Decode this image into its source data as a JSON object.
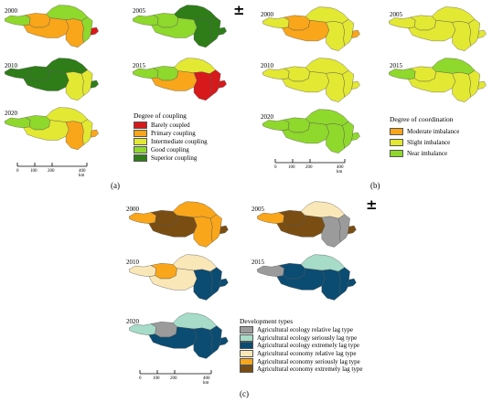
{
  "panel_a": {
    "label": "(a)",
    "years": [
      "2000",
      "2005",
      "2010",
      "2015",
      "2020"
    ],
    "legend_title": "Degree of coupling",
    "legend": [
      {
        "label": "Barely coupled",
        "color": "#d7191c"
      },
      {
        "label": "Primary coupling",
        "color": "#f9a61a"
      },
      {
        "label": "Intermediate coupling",
        "color": "#e3e832"
      },
      {
        "label": "Good coupling",
        "color": "#8fd82c"
      },
      {
        "label": "Superior coupling",
        "color": "#2e7d18"
      }
    ],
    "scale_labels": [
      "0",
      "100",
      "200",
      "400 km"
    ]
  },
  "panel_b": {
    "label": "(b)",
    "years": [
      "2000",
      "2005",
      "2010",
      "2015",
      "2020"
    ],
    "legend_title": "Degree of coordination",
    "legend": [
      {
        "label": "Moderate imbalance",
        "color": "#f9a61a"
      },
      {
        "label": "Slight imbalance",
        "color": "#e3e832"
      },
      {
        "label": "Near imbalance",
        "color": "#8fd82c"
      }
    ],
    "scale_labels": [
      "0",
      "100",
      "200",
      "400 km"
    ]
  },
  "panel_c": {
    "label": "(c)",
    "years": [
      "2000",
      "2005",
      "2010",
      "2015",
      "2020"
    ],
    "legend_title": "Development types",
    "legend": [
      {
        "label": "Agricultural ecology relative lag type",
        "color": "#9b9b9b"
      },
      {
        "label": "Agricultural ecology seriously lag type",
        "color": "#a6dcc8"
      },
      {
        "label": "Agricultural ecology extremely lag type",
        "color": "#0b4c72"
      },
      {
        "label": "Agricultural economy relative lag type",
        "color": "#fae7b7"
      },
      {
        "label": "Agricultural economy seriously lag type",
        "color": "#f9a61a"
      },
      {
        "label": "Agricultural economy extremely lag type",
        "color": "#7a4d12"
      }
    ],
    "scale_labels": [
      "0",
      "100",
      "200",
      "400 km"
    ]
  },
  "north_symbol": "±",
  "maps": {
    "a2000": {
      "west": "#8fd82c",
      "wc": "#f9a61a",
      "center": "#f9a61a",
      "north": "#8fd82c",
      "se": "#f9a61a",
      "east": "#8fd82c",
      "tip": "#d7191c"
    },
    "a2005": {
      "west": "#8fd82c",
      "wc": "#8fd82c",
      "center": "#8fd82c",
      "north": "#2e7d18",
      "se": "#2e7d18",
      "east": "#2e7d18",
      "tip": "#2e7d18"
    },
    "a2010": {
      "west": "#2e7d18",
      "wc": "#2e7d18",
      "center": "#2e7d18",
      "north": "#2e7d18",
      "se": "#e3e832",
      "east": "#e3e832",
      "tip": "#2e7d18"
    },
    "a2015": {
      "west": "#8fd82c",
      "wc": "#8fd82c",
      "center": "#f9a61a",
      "north": "#e3e832",
      "se": "#d7191c",
      "east": "#d7191c",
      "tip": "#d7191c"
    },
    "a2020": {
      "west": "#8fd82c",
      "wc": "#8fd82c",
      "center": "#e3e832",
      "north": "#e3e832",
      "se": "#f9a61a",
      "east": "#e3e832",
      "tip": "#f9a61a"
    },
    "b2000": {
      "west": "#e3e832",
      "wc": "#f9a61a",
      "center": "#f9a61a",
      "north": "#e3e832",
      "se": "#e3e832",
      "east": "#e3e832",
      "tip": "#f9a61a"
    },
    "b2005": {
      "west": "#e3e832",
      "wc": "#e3e832",
      "center": "#e3e832",
      "north": "#e3e832",
      "se": "#e3e832",
      "east": "#e3e832",
      "tip": "#e3e832"
    },
    "b2010": {
      "west": "#e3e832",
      "wc": "#e3e832",
      "center": "#e3e832",
      "north": "#e3e832",
      "se": "#e3e832",
      "east": "#e3e832",
      "tip": "#e3e832"
    },
    "b2015": {
      "west": "#8fd82c",
      "wc": "#e3e832",
      "center": "#e3e832",
      "north": "#8fd82c",
      "se": "#e3e832",
      "east": "#e3e832",
      "tip": "#e3e832"
    },
    "b2020": {
      "west": "#8fd82c",
      "wc": "#8fd82c",
      "center": "#8fd82c",
      "north": "#8fd82c",
      "se": "#8fd82c",
      "east": "#8fd82c",
      "tip": "#8fd82c"
    },
    "c2000": {
      "west": "#f9a61a",
      "wc": "#7a4d12",
      "center": "#7a4d12",
      "north": "#f9a61a",
      "se": "#f9a61a",
      "east": "#f9a61a",
      "tip": "#7a4d12"
    },
    "c2005": {
      "west": "#f9a61a",
      "wc": "#7a4d12",
      "center": "#7a4d12",
      "north": "#fae7b7",
      "se": "#9b9b9b",
      "east": "#9b9b9b",
      "tip": "#7a4d12"
    },
    "c2010": {
      "west": "#fae7b7",
      "wc": "#f9a61a",
      "center": "#fae7b7",
      "north": "#fae7b7",
      "se": "#0b4c72",
      "east": "#0b4c72",
      "tip": "#0b4c72"
    },
    "c2015": {
      "west": "#9b9b9b",
      "wc": "#0b4c72",
      "center": "#0b4c72",
      "north": "#a6dcc8",
      "se": "#0b4c72",
      "east": "#0b4c72",
      "tip": "#0b4c72"
    },
    "c2020": {
      "west": "#a6dcc8",
      "wc": "#9b9b9b",
      "center": "#0b4c72",
      "north": "#a6dcc8",
      "se": "#0b4c72",
      "east": "#0b4c72",
      "tip": "#0b4c72"
    }
  }
}
